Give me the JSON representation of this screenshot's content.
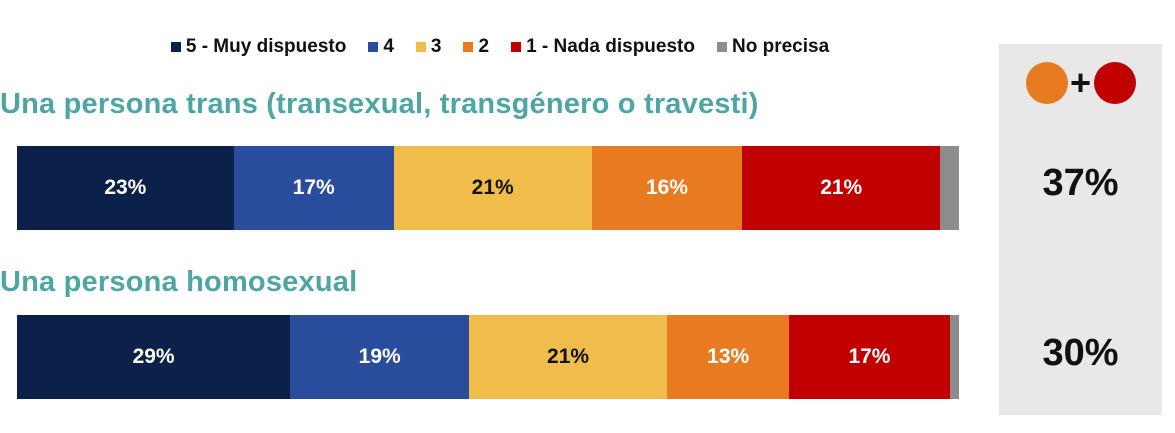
{
  "chart_data": {
    "type": "bar",
    "orientation": "horizontal-stacked-100",
    "legend_position": "top",
    "legend": [
      {
        "label": "5 - Muy dispuesto",
        "color": "#0c2149"
      },
      {
        "label": "4",
        "color": "#2a4c9c"
      },
      {
        "label": "3",
        "color": "#f1bd4a"
      },
      {
        "label": "2",
        "color": "#e87a22"
      },
      {
        "label": "1 - Nada dispuesto",
        "color": "#c10000"
      },
      {
        "label": "No precisa",
        "color": "#8c8c8c"
      }
    ],
    "categories": [
      "Una persona trans (transexual, transgénero o travesti)",
      "Una persona homosexual"
    ],
    "series": [
      {
        "name": "5 - Muy dispuesto",
        "values": [
          23,
          29
        ],
        "labels": [
          "23%",
          "29%"
        ]
      },
      {
        "name": "4",
        "values": [
          17,
          19
        ],
        "labels": [
          "17%",
          "19%"
        ]
      },
      {
        "name": "3",
        "values": [
          21,
          21
        ],
        "labels": [
          "21%",
          "21%"
        ]
      },
      {
        "name": "2",
        "values": [
          16,
          13
        ],
        "labels": [
          "16%",
          "13%"
        ]
      },
      {
        "name": "1 - Nada dispuesto",
        "values": [
          21,
          17
        ],
        "labels": [
          "21%",
          "17%"
        ]
      },
      {
        "name": "No precisa",
        "values": [
          2,
          1
        ],
        "labels": [
          "",
          ""
        ]
      }
    ],
    "summary_panel": {
      "symbol_plus": "+",
      "circle_colors": [
        "#e87a22",
        "#c10000"
      ],
      "panel_color": "#e8e8e8",
      "totals": [
        "37%",
        "30%"
      ]
    }
  }
}
